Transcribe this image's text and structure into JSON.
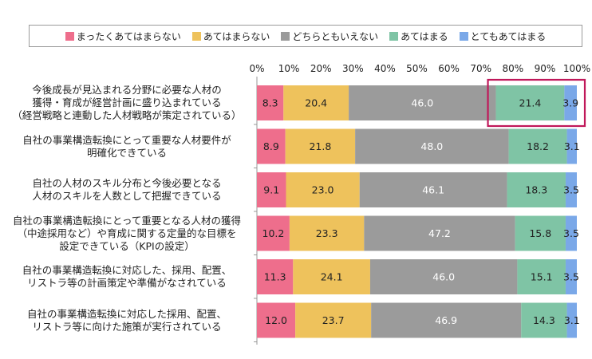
{
  "chart_data": {
    "type": "bar",
    "orientation": "horizontal",
    "stacked": true,
    "percent_axis": true,
    "xlim": [
      0,
      100
    ],
    "ticks": [
      "0%",
      "10%",
      "20%",
      "30%",
      "40%",
      "50%",
      "60%",
      "70%",
      "80%",
      "90%",
      "100%"
    ],
    "legend_position": "top",
    "highlight": {
      "category_index": 0,
      "series_indices": [
        3,
        4
      ],
      "color": "#c0185a"
    },
    "categories": [
      [
        "今後成長が見込まれる分野に必要な人材の",
        "獲得・育成が経営計画に盛り込まれている",
        "（経営戦略と連動した人材戦略が策定されている）"
      ],
      [
        "自社の事業構造転換にとって重要な人材要件が",
        "明確化できている"
      ],
      [
        "自社の人材のスキル分布と今後必要となる",
        "人材のスキルを人数として把握できている"
      ],
      [
        "自社の事業構造転換にとって重要となる人材の獲得",
        "（中途採用など）や育成に関する定量的な目標を",
        "設定できている（KPIの設定）"
      ],
      [
        "自社の事業構造転換に対応した、採用、配置、",
        "リストラ等の計画策定や準備がなされている"
      ],
      [
        "自社の事業構造転換に対応した採用、配置、",
        "リストラ等に向けた施策が実行されている"
      ]
    ],
    "series": [
      {
        "name": "まったくあてはまらない",
        "color": "#ee6e8c",
        "values": [
          8.3,
          8.9,
          9.1,
          10.2,
          11.3,
          12.0
        ],
        "labels": [
          "8.3",
          "8.9",
          "9.1",
          "10.2",
          "11.3",
          "12.0"
        ]
      },
      {
        "name": "あてはまらない",
        "color": "#eec25c",
        "values": [
          20.4,
          21.8,
          23.0,
          23.3,
          24.1,
          23.7
        ],
        "labels": [
          "20.4",
          "21.8",
          "23.0",
          "23.3",
          "24.1",
          "23.7"
        ]
      },
      {
        "name": "どちらともいえない",
        "color": "#9b9b9b",
        "values": [
          46.0,
          48.0,
          46.1,
          47.2,
          46.0,
          46.9
        ],
        "labels": [
          "46.0",
          "48.0",
          "46.1",
          "47.2",
          "46.0",
          "46.9"
        ]
      },
      {
        "name": "あてはまる",
        "color": "#7fc4a5",
        "values": [
          21.4,
          18.2,
          18.3,
          15.8,
          15.1,
          14.3
        ],
        "labels": [
          "21.4",
          "18.2",
          "18.3",
          "15.8",
          "15.1",
          "14.3"
        ]
      },
      {
        "name": "とてもあてはまる",
        "color": "#7aa8e8",
        "values": [
          3.9,
          3.1,
          3.5,
          3.5,
          3.5,
          3.1
        ],
        "labels": [
          "3.9",
          "3.1",
          "3.5",
          "3.5",
          "3.5",
          "3.1"
        ]
      }
    ]
  }
}
